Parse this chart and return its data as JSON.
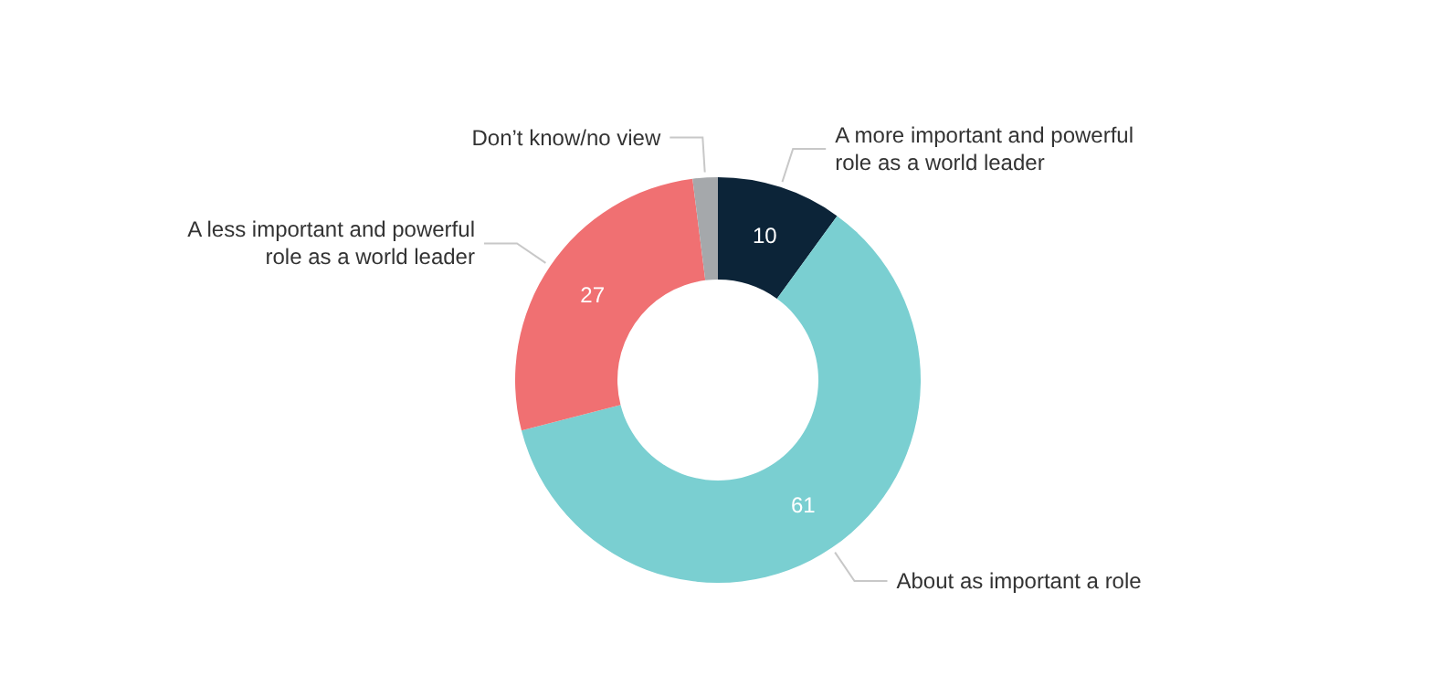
{
  "chart_data": {
    "type": "donut",
    "categories": [
      "A more important and powerful role as a world leader",
      "About as important a role",
      "A less important and powerful role as a world leader",
      "Don’t know/no view"
    ],
    "values": [
      10,
      61,
      27,
      2
    ],
    "colors": [
      "#0c2438",
      "#7acfd1",
      "#f07072",
      "#a5a8ab"
    ],
    "value_labels": [
      "10",
      "61",
      "27",
      null
    ]
  }
}
